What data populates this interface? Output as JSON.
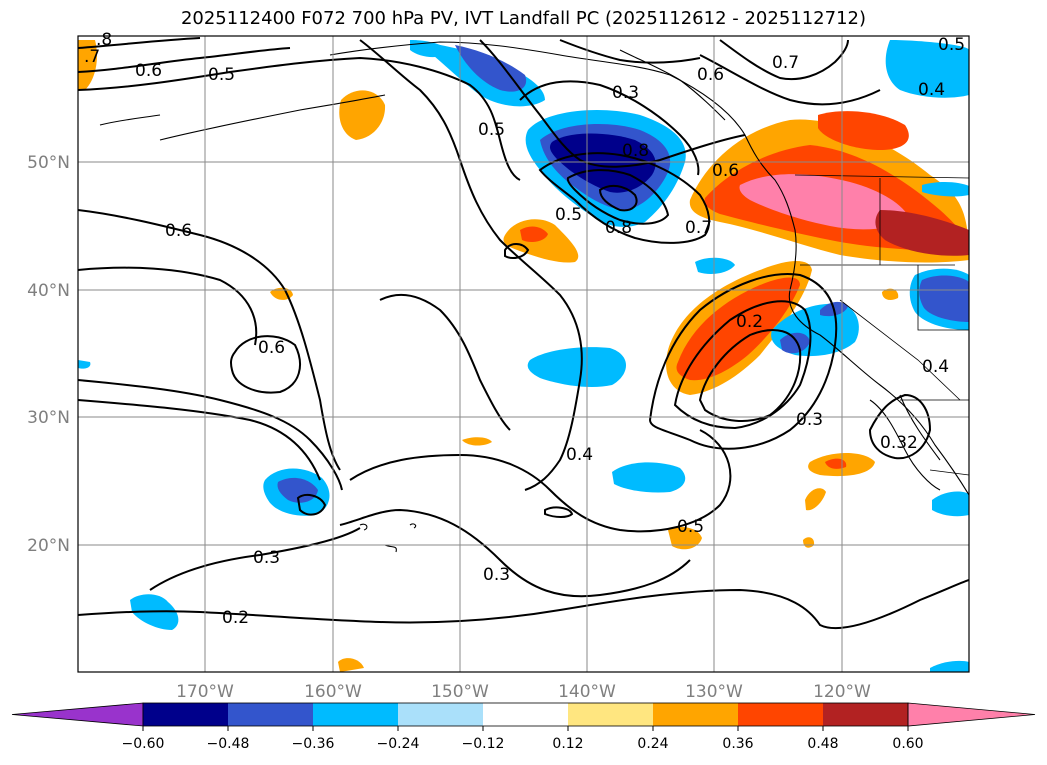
{
  "title": "2025112400 F072 700 hPa PV, IVT Landfall PC (2025112612 - 2025112712)",
  "map": {
    "lat_labels": [
      "50°N",
      "40°N",
      "30°N",
      "20°N"
    ],
    "lon_labels": [
      "170°W",
      "160°W",
      "150°W",
      "140°W",
      "130°W",
      "120°W"
    ]
  },
  "contour_labels": [
    ".8",
    ".7",
    "0.6",
    "0.5",
    "0.3",
    "0.6",
    "0.7",
    "0.5",
    "0.4",
    "0.5",
    "0.8",
    "0.6",
    "0.7",
    "0.8",
    "0.5",
    "0.6",
    "0.6",
    "0.2",
    "0.4",
    "0.4",
    "0.3",
    "0.32",
    "0.5",
    "0.3",
    "0.3",
    "0.2"
  ],
  "colorbar": {
    "ticks": [
      "−0.60",
      "−0.48",
      "−0.36",
      "−0.24",
      "−0.12",
      "0.12",
      "0.24",
      "0.36",
      "0.48",
      "0.60"
    ],
    "colors": [
      "#9933cc",
      "#00008b",
      "#3355cc",
      "#00bbff",
      "#aae0fa",
      "#ffffff",
      "#ffe680",
      "#ffa500",
      "#ff4500",
      "#b22222",
      "#ff80aa"
    ]
  }
}
